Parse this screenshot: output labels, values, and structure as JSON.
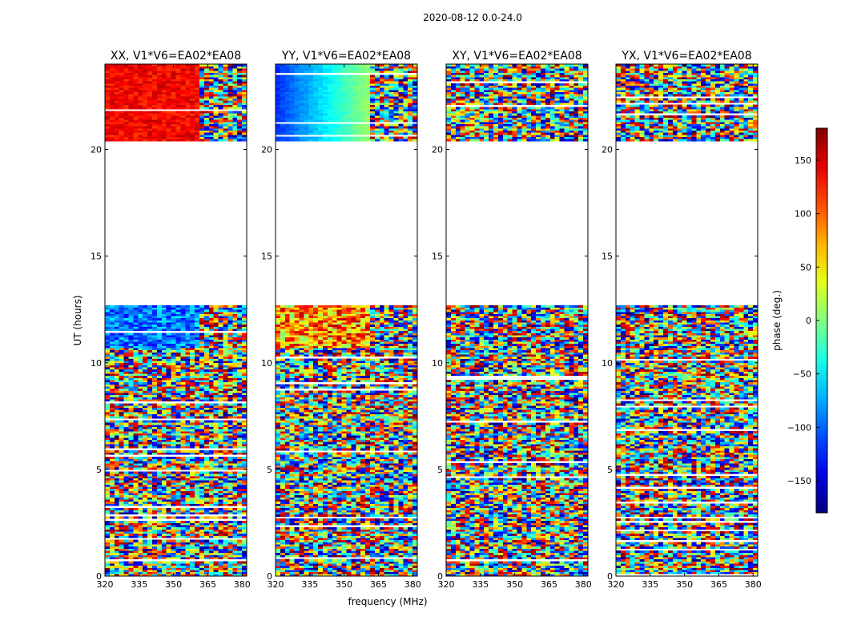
{
  "figure": {
    "suptitle": "2020-08-12 0.0-24.0",
    "ylabel": "UT (hours)",
    "xlabel": "frequency (MHz)"
  },
  "chart_data": {
    "type": "heatmap",
    "x_range": [
      320,
      382
    ],
    "y_range": [
      0,
      24
    ],
    "x_ticks": [
      320,
      335,
      350,
      365,
      380
    ],
    "y_ticks": [
      0,
      5,
      10,
      15,
      20
    ],
    "panels": [
      {
        "title": "XX, V1*V6=EA02*EA08",
        "pol": "XX"
      },
      {
        "title": "YY, V1*V6=EA02*EA08",
        "pol": "YY"
      },
      {
        "title": "XY, V1*V6=EA02*EA08",
        "pol": "XY"
      },
      {
        "title": "YX, V1*V6=EA02*EA08",
        "pol": "YX"
      }
    ],
    "data_gaps_hours": [
      [
        12.6,
        20.4
      ]
    ],
    "colorbar": {
      "label": "phase (deg.)",
      "range": [
        -180,
        180
      ],
      "ticks": [
        -150,
        -100,
        -50,
        0,
        50,
        100,
        150
      ],
      "colormap": "jet"
    }
  }
}
